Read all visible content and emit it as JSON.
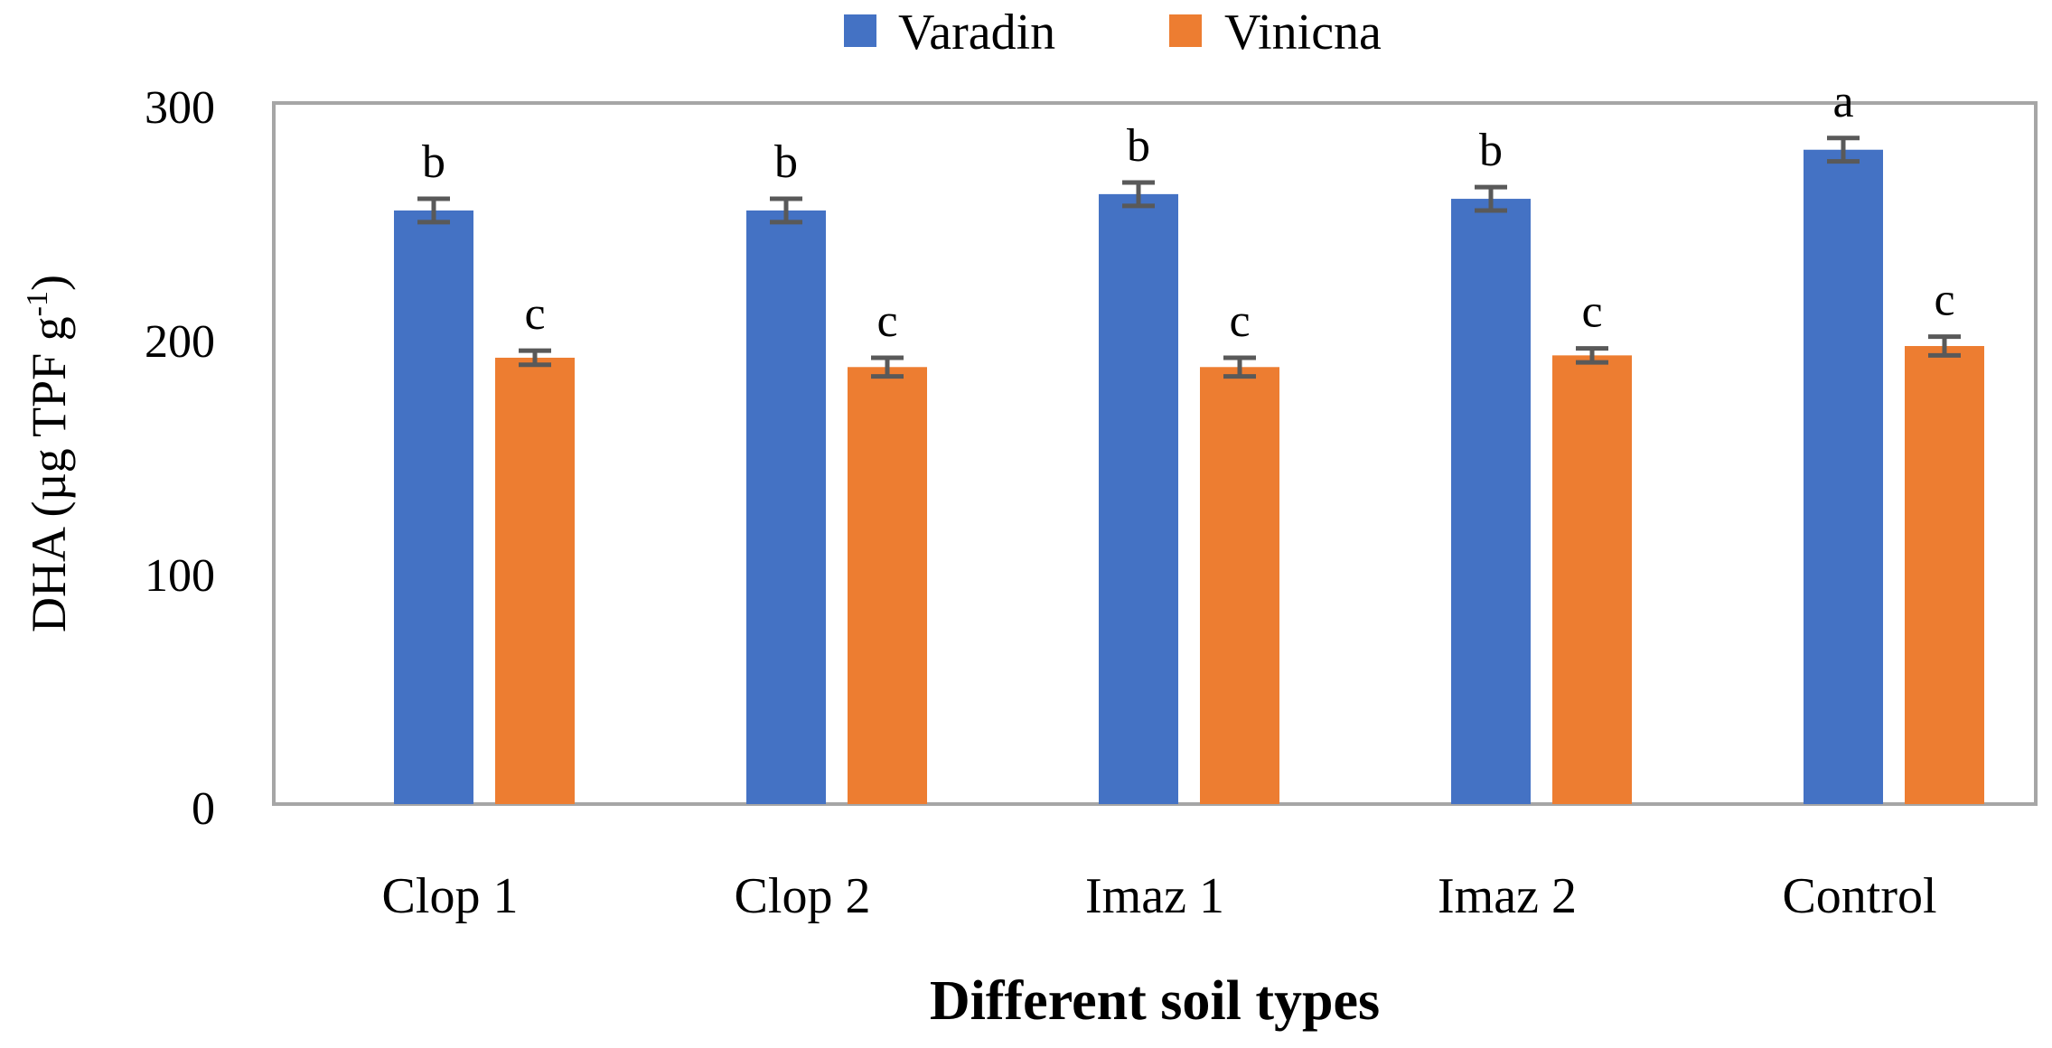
{
  "chart_data": {
    "type": "bar",
    "title": "",
    "xlabel": "Different soil types",
    "ylabel_main": "DHA (µg TPF g",
    "ylabel_sup": "-1",
    "ylabel_close": ")",
    "categories": [
      "Clop 1",
      "Clop 2",
      "Imaz 1",
      "Imaz 2",
      "Control"
    ],
    "ylim": [
      0,
      300
    ],
    "yticks": [
      "0",
      "100",
      "200",
      "300"
    ],
    "legend_position": "top-center",
    "grid": false,
    "series": [
      {
        "name": "Varadin",
        "color": "#4472C4",
        "values": [
          254,
          254,
          261,
          259,
          280
        ],
        "errors": [
          5,
          5,
          5,
          5,
          5
        ],
        "letters": [
          "b",
          "b",
          "b",
          "b",
          "a"
        ]
      },
      {
        "name": "Vinicna",
        "color": "#ED7D31",
        "values": [
          191,
          187,
          187,
          192,
          196
        ],
        "errors": [
          3,
          4,
          4,
          3,
          4
        ],
        "letters": [
          "c",
          "c",
          "c",
          "c",
          "c"
        ]
      }
    ],
    "axis_color": "#A6A6A6",
    "errorbar_color": "#595959"
  }
}
